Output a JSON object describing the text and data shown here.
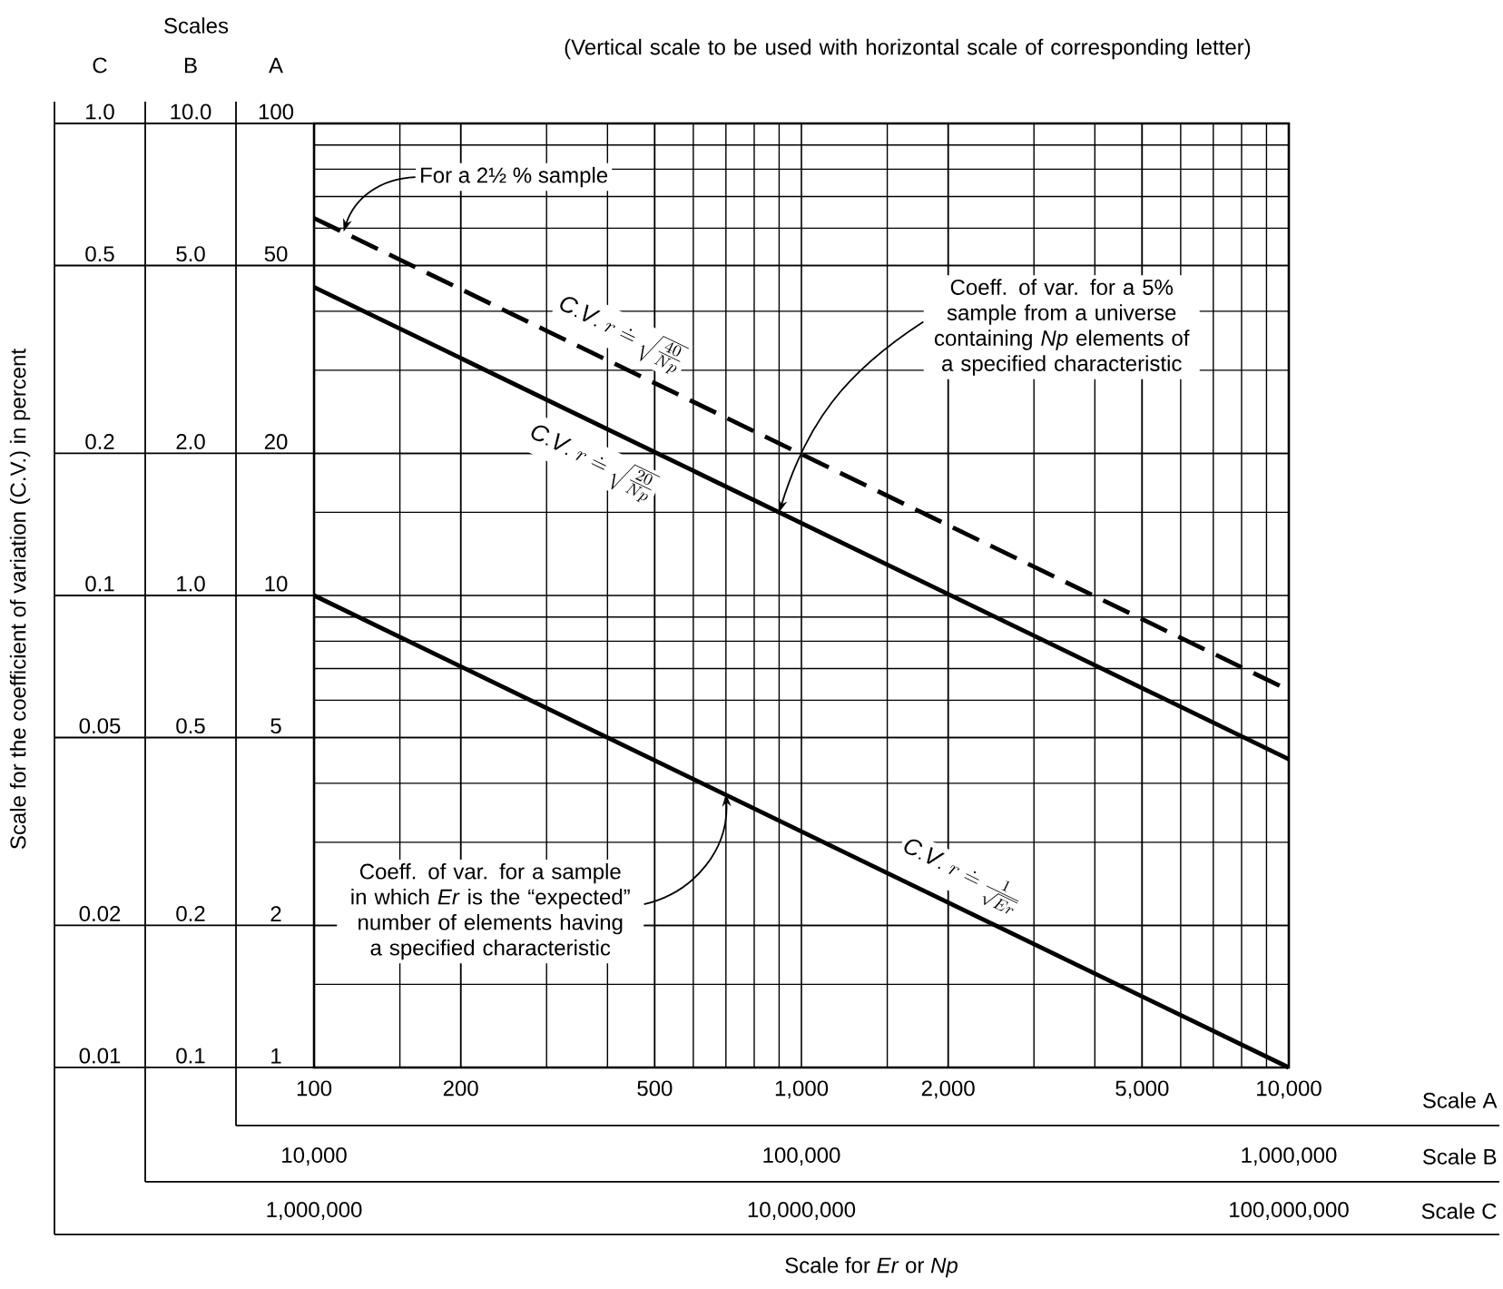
{
  "chart_data": {
    "type": "line",
    "title": "(Vertical scale to be used with horizontal scale of corresponding letter)",
    "log": "xy",
    "grid": true,
    "x": [
      100,
      10000
    ],
    "xlim": [
      100,
      10000
    ],
    "xticks": [
      100,
      200,
      500,
      {
        "value": 1000,
        "label": "1,000"
      },
      {
        "value": 2000,
        "label": "2,000"
      },
      {
        "value": 5000,
        "label": "5,000"
      },
      {
        "value": 10000,
        "label": "10,000"
      }
    ],
    "ylim": [
      1,
      100
    ],
    "yticks": [
      1,
      2,
      5,
      10,
      20,
      50,
      100
    ],
    "series": [
      {
        "name": "\\mathit{C.V.}\\ r \\doteq \\sqrt{\\frac{40}{Np}}",
        "values": [
          63,
          6.3
        ],
        "color": "#000000",
        "line_style": "dashed"
      },
      {
        "name": "\\mathit{C.V.}\\ r \\doteq \\sqrt{\\frac{20}{Np}}",
        "values": [
          45,
          4.5
        ],
        "color": "#000000",
        "line_style": "solid"
      },
      {
        "name": "\\mathit{C.V.}\\ r \\doteq \\frac{1}{\\sqrt{Er}}",
        "values": [
          10,
          1
        ],
        "color": "#000000",
        "line_style": "solid"
      }
    ],
    "annotations": [
      "Scales",
      "C",
      "B",
      "A",
      "Scale A",
      "Scale B",
      "Scale C",
      {
        "text": "For a 2½ % sample",
        "x": 115,
        "y": 59
      },
      {
        "text": "Coeff. of var. for a 5% sample from a universe containing *Np* elements of a specified characteristic",
        "x": 900,
        "y": 15
      },
      {
        "text": "Coeff. of var. for a sample in which *Er* is the “expected” number of elements having a specified characteristic",
        "x": 700,
        "y": 3.8
      },
      "1,000,000",
      "10,000,000",
      "100,000,000",
      "Scale for *Er* or *Np*",
      "Scale for the coefficient of variation (C.V.) in percent",
      "10,000",
      "100,000",
      "1,000,000",
      "0.1",
      "0.2",
      "0.5",
      "1.0",
      "2.0",
      "5.0",
      "10.0",
      "0.01",
      "0.02",
      "0.05",
      "0.1",
      "0.2",
      "0.5",
      "1.0"
    ]
  }
}
